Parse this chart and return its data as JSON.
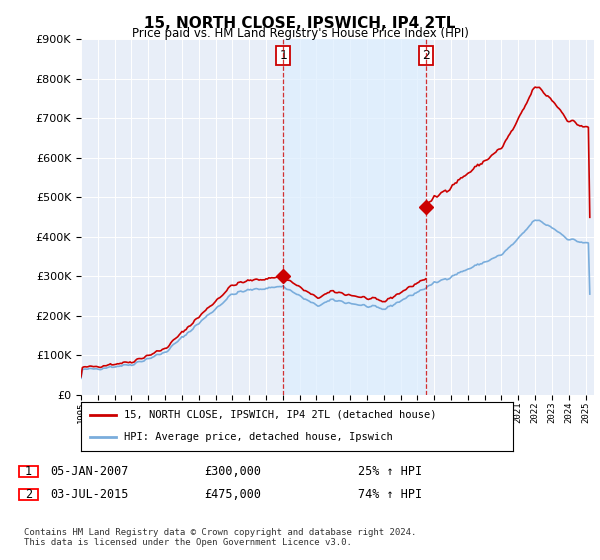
{
  "title": "15, NORTH CLOSE, IPSWICH, IP4 2TL",
  "subtitle": "Price paid vs. HM Land Registry's House Price Index (HPI)",
  "property_label": "15, NORTH CLOSE, IPSWICH, IP4 2TL (detached house)",
  "hpi_label": "HPI: Average price, detached house, Ipswich",
  "transaction1_date": "05-JAN-2007",
  "transaction1_price": 300000,
  "transaction1_hpi": "25% ↑ HPI",
  "transaction1_year": 2007.03,
  "transaction2_date": "03-JUL-2015",
  "transaction2_price": 475000,
  "transaction2_hpi": "74% ↑ HPI",
  "transaction2_year": 2015.5,
  "footer": "Contains HM Land Registry data © Crown copyright and database right 2024.\nThis data is licensed under the Open Government Licence v3.0.",
  "property_color": "#cc0000",
  "hpi_color": "#7aaddc",
  "shade_color": "#ddeeff",
  "vline_color": "#cc0000",
  "background_color": "#e8eef8",
  "ylim_max": 900000,
  "xlim_start": 1995.0,
  "xlim_end": 2025.5
}
